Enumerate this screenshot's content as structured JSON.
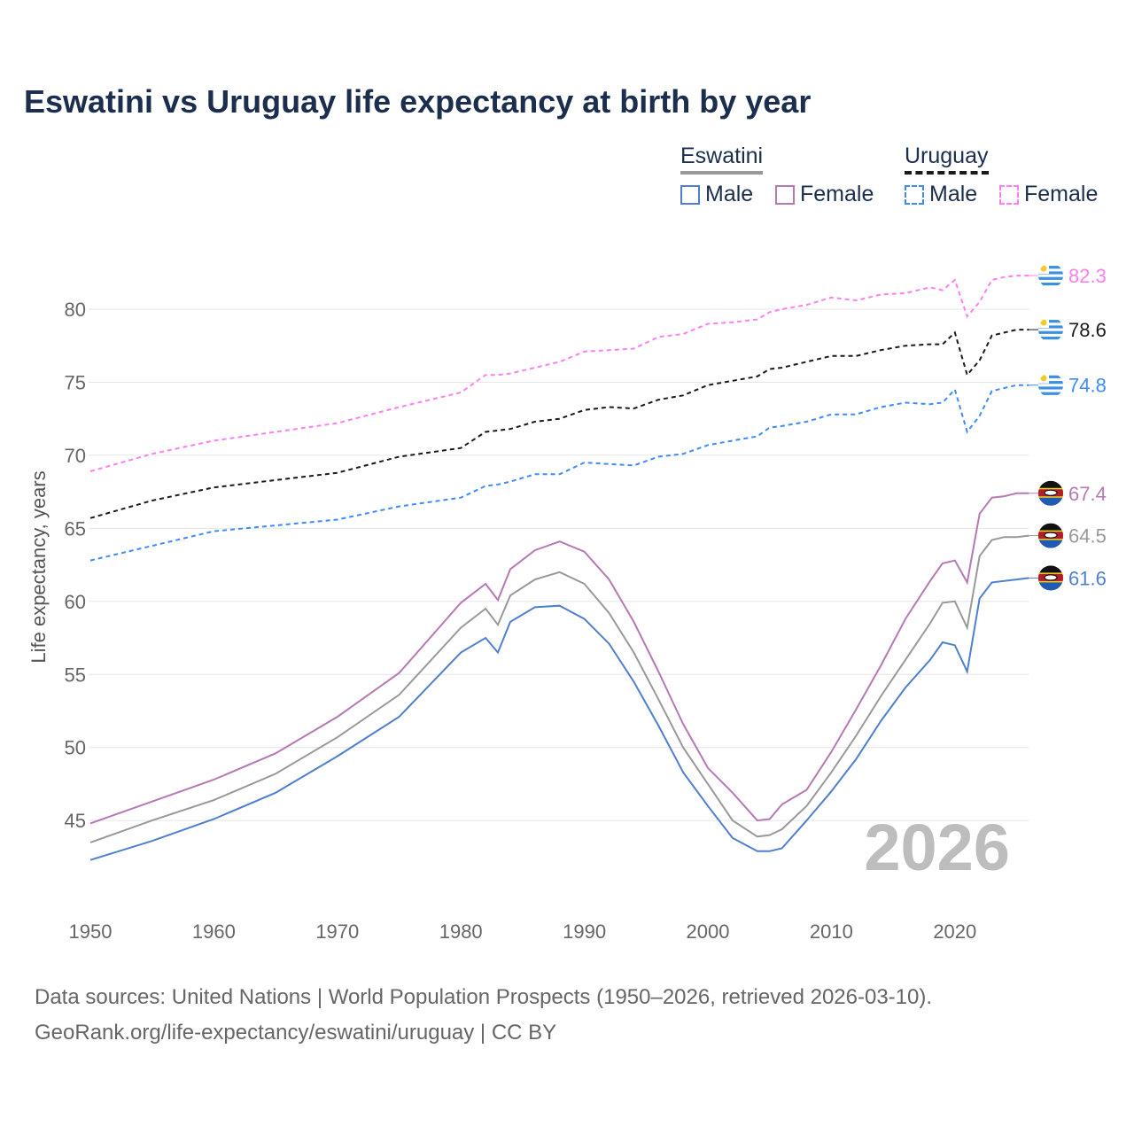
{
  "chart_data": {
    "type": "line",
    "title": "Eswatini vs Uruguay life expectancy at birth by year",
    "xlabel": "",
    "ylabel": "Life expectancy, years",
    "xlim": [
      1950,
      2026
    ],
    "ylim": [
      40,
      84
    ],
    "x_ticks": [
      "1950",
      "1960",
      "1970",
      "1980",
      "1990",
      "2000",
      "2010",
      "2020"
    ],
    "y_ticks": [
      "45",
      "50",
      "55",
      "60",
      "65",
      "70",
      "75",
      "80"
    ],
    "grid": true,
    "year_watermark": "2026",
    "legend": {
      "placement": "top-right",
      "groups": [
        {
          "name": "Eswatini",
          "items": [
            "Male",
            "Female"
          ]
        },
        {
          "name": "Uruguay",
          "items": [
            "Male",
            "Female"
          ]
        }
      ]
    },
    "x": [
      1950,
      1955,
      1960,
      1965,
      1970,
      1975,
      1980,
      1982,
      1983,
      1984,
      1986,
      1988,
      1990,
      1992,
      1994,
      1996,
      1998,
      2000,
      2002,
      2004,
      2005,
      2006,
      2008,
      2010,
      2012,
      2014,
      2016,
      2018,
      2019,
      2020,
      2021,
      2022,
      2023,
      2024,
      2025,
      2026
    ],
    "series": [
      {
        "name": "Uruguay Female",
        "country": "Uruguay",
        "color": "#ff7ff0",
        "dash": true,
        "end_label": "82.3",
        "values": [
          68.9,
          70.1,
          71.0,
          71.6,
          72.2,
          73.3,
          74.3,
          75.5,
          75.5,
          75.6,
          76.0,
          76.4,
          77.1,
          77.2,
          77.3,
          78.1,
          78.3,
          79.0,
          79.1,
          79.3,
          79.8,
          80.0,
          80.3,
          80.8,
          80.6,
          81.0,
          81.1,
          81.5,
          81.3,
          82.0,
          79.5,
          80.5,
          82.0,
          82.2,
          82.3,
          82.3
        ]
      },
      {
        "name": "Uruguay",
        "country": "Uruguay",
        "color": "#1a1a1a",
        "dash": true,
        "end_label": "78.6",
        "values": [
          65.7,
          66.9,
          67.8,
          68.3,
          68.8,
          69.9,
          70.5,
          71.6,
          71.7,
          71.8,
          72.3,
          72.5,
          73.1,
          73.3,
          73.2,
          73.8,
          74.1,
          74.8,
          75.1,
          75.4,
          75.9,
          76.0,
          76.4,
          76.8,
          76.8,
          77.2,
          77.5,
          77.6,
          77.6,
          78.4,
          75.5,
          76.5,
          78.2,
          78.4,
          78.6,
          78.6
        ]
      },
      {
        "name": "Uruguay Male",
        "country": "Uruguay",
        "color": "#3d8bff",
        "dash": true,
        "end_label": "74.8",
        "values": [
          62.8,
          63.8,
          64.8,
          65.2,
          65.6,
          66.5,
          67.1,
          67.9,
          68.0,
          68.2,
          68.7,
          68.7,
          69.5,
          69.4,
          69.3,
          69.9,
          70.1,
          70.7,
          71.0,
          71.3,
          71.9,
          72.0,
          72.3,
          72.8,
          72.8,
          73.3,
          73.6,
          73.5,
          73.6,
          74.5,
          71.6,
          72.7,
          74.4,
          74.6,
          74.8,
          74.8
        ]
      },
      {
        "name": "Eswatini Female",
        "country": "Eswatini",
        "color": "#b679b4",
        "dash": false,
        "end_label": "67.4",
        "values": [
          44.8,
          46.3,
          47.8,
          49.6,
          52.1,
          55.1,
          59.9,
          61.2,
          60.1,
          62.2,
          63.5,
          64.1,
          63.4,
          61.5,
          58.6,
          55.2,
          51.6,
          48.6,
          46.9,
          45.0,
          45.1,
          46.1,
          47.1,
          49.7,
          52.6,
          55.6,
          58.8,
          61.4,
          62.6,
          62.8,
          61.3,
          66.0,
          67.1,
          67.2,
          67.4,
          67.4
        ]
      },
      {
        "name": "Eswatini",
        "country": "Eswatini",
        "color": "#999999",
        "dash": false,
        "end_label": "64.5",
        "values": [
          43.5,
          45.0,
          46.4,
          48.2,
          50.7,
          53.6,
          58.2,
          59.5,
          58.4,
          60.4,
          61.5,
          62.0,
          61.2,
          59.2,
          56.5,
          53.3,
          50.0,
          47.5,
          45.0,
          43.9,
          44.0,
          44.4,
          46.0,
          48.3,
          50.8,
          53.5,
          56.0,
          58.5,
          59.9,
          60.0,
          58.2,
          63.1,
          64.2,
          64.4,
          64.4,
          64.5
        ]
      },
      {
        "name": "Eswatini Male",
        "country": "Eswatini",
        "color": "#4e7fd0",
        "dash": false,
        "end_label": "61.6",
        "values": [
          42.3,
          43.6,
          45.1,
          46.9,
          49.4,
          52.1,
          56.5,
          57.5,
          56.5,
          58.6,
          59.6,
          59.7,
          58.8,
          57.1,
          54.5,
          51.5,
          48.3,
          46.0,
          43.8,
          42.9,
          42.9,
          43.1,
          45.0,
          47.0,
          49.2,
          51.8,
          54.1,
          56.0,
          57.2,
          57.0,
          55.2,
          60.2,
          61.3,
          61.4,
          61.5,
          61.6
        ]
      }
    ],
    "label_y_nudges": [
      0,
      0,
      0,
      0,
      0,
      0
    ]
  },
  "footer": {
    "line1": "Data sources: United Nations | World Population Prospects (1950–2026, retrieved 2026-03-10).",
    "line2": "GeoRank.org/life-expectancy/eswatini/uruguay | CC BY"
  }
}
